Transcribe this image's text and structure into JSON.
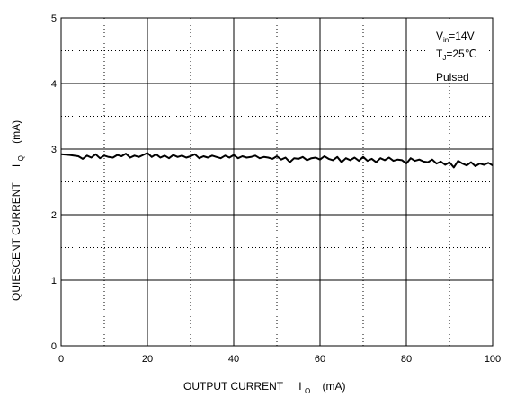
{
  "chart_data": {
    "type": "line",
    "title": "",
    "xlabel": {
      "main": "OUTPUT CURRENT",
      "symbol": "I",
      "sub": "O",
      "unit": "(mA)"
    },
    "ylabel": {
      "main": "QUIESCENT CURRENT",
      "symbol": "I",
      "sub": "Q",
      "unit": "(mA)"
    },
    "xlim": [
      0,
      100
    ],
    "ylim": [
      0,
      5
    ],
    "x_ticks": [
      "0",
      "20",
      "40",
      "60",
      "80",
      "100"
    ],
    "y_ticks": [
      "0",
      "1",
      "2",
      "3",
      "4",
      "5"
    ],
    "grid": {
      "major": "solid",
      "minor": "dotted"
    },
    "conditions": [
      {
        "main": "V",
        "sub": "in",
        "rest": "=14V"
      },
      {
        "main": "T",
        "sub": "J",
        "rest": "=25℃"
      },
      {
        "main": "Pulsed",
        "sub": "",
        "rest": ""
      }
    ],
    "series": [
      {
        "color": "#000000",
        "x": [
          0,
          2,
          4,
          5,
          6,
          7,
          8,
          9,
          10,
          11,
          12,
          13,
          14,
          15,
          16,
          17,
          18,
          19,
          20,
          21,
          22,
          23,
          24,
          25,
          26,
          27,
          28,
          29,
          30,
          31,
          32,
          33,
          34,
          35,
          36,
          37,
          38,
          39,
          40,
          41,
          42,
          43,
          44,
          45,
          46,
          47,
          48,
          49,
          50,
          51,
          52,
          53,
          54,
          55,
          56,
          57,
          58,
          59,
          60,
          61,
          62,
          63,
          64,
          65,
          66,
          67,
          68,
          69,
          70,
          71,
          72,
          73,
          74,
          75,
          76,
          77,
          78,
          79,
          80,
          81,
          82,
          83,
          84,
          85,
          86,
          87,
          88,
          89,
          90,
          91,
          92,
          93,
          94,
          95,
          96,
          97,
          98,
          99,
          100
        ],
        "values": [
          2.92,
          2.91,
          2.89,
          2.85,
          2.9,
          2.87,
          2.92,
          2.86,
          2.9,
          2.88,
          2.87,
          2.91,
          2.89,
          2.93,
          2.87,
          2.9,
          2.88,
          2.91,
          2.94,
          2.88,
          2.92,
          2.87,
          2.9,
          2.86,
          2.91,
          2.88,
          2.9,
          2.87,
          2.89,
          2.92,
          2.86,
          2.89,
          2.87,
          2.9,
          2.88,
          2.86,
          2.9,
          2.87,
          2.91,
          2.86,
          2.89,
          2.87,
          2.88,
          2.9,
          2.86,
          2.88,
          2.87,
          2.85,
          2.89,
          2.84,
          2.87,
          2.8,
          2.86,
          2.85,
          2.88,
          2.83,
          2.86,
          2.87,
          2.84,
          2.89,
          2.85,
          2.83,
          2.88,
          2.8,
          2.86,
          2.83,
          2.87,
          2.82,
          2.88,
          2.82,
          2.85,
          2.8,
          2.86,
          2.83,
          2.87,
          2.82,
          2.84,
          2.83,
          2.78,
          2.86,
          2.82,
          2.84,
          2.81,
          2.8,
          2.84,
          2.78,
          2.81,
          2.76,
          2.8,
          2.72,
          2.82,
          2.78,
          2.75,
          2.8,
          2.74,
          2.78,
          2.76,
          2.79,
          2.75
        ]
      }
    ]
  }
}
